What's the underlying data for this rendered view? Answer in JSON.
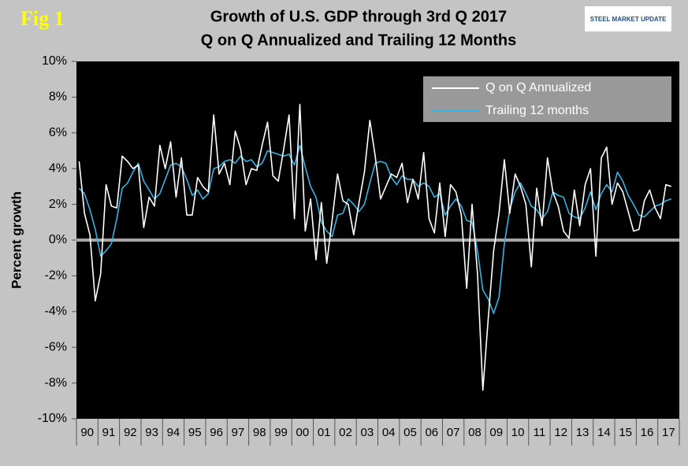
{
  "chart_data": {
    "type": "line",
    "fig_label": "Fig 1",
    "logo": "STEEL MARKET UPDATE",
    "title": "Growth of U.S. GDP through 3rd Q 2017",
    "subtitle": "Q on Q Annualized and Trailing 12 Months",
    "y_label": "Percent growth",
    "categories": [
      "90",
      null,
      null,
      null,
      "91",
      null,
      null,
      null,
      "92",
      null,
      null,
      null,
      "93",
      null,
      null,
      null,
      "94",
      null,
      null,
      null,
      "95",
      null,
      null,
      null,
      "96",
      null,
      null,
      null,
      "97",
      null,
      null,
      null,
      "98",
      null,
      null,
      null,
      "99",
      null,
      null,
      null,
      "00",
      null,
      null,
      null,
      "01",
      null,
      null,
      null,
      "02",
      null,
      null,
      null,
      "03",
      null,
      null,
      null,
      "04",
      null,
      null,
      null,
      "05",
      null,
      null,
      null,
      "06",
      null,
      null,
      null,
      "07",
      null,
      null,
      null,
      "08",
      null,
      null,
      null,
      "09",
      null,
      null,
      null,
      "10",
      null,
      null,
      null,
      "11",
      null,
      null,
      null,
      "12",
      null,
      null,
      null,
      "13",
      null,
      null,
      null,
      "14",
      null,
      null,
      null,
      "15",
      null,
      null,
      null,
      "16",
      null,
      null,
      null,
      "17",
      null,
      null
    ],
    "series": [
      {
        "name": "Q on Q Annualized",
        "color": "#ffffff",
        "values": [
          4.4,
          1.5,
          0.3,
          -3.4,
          -1.9,
          3.1,
          1.9,
          1.8,
          4.7,
          4.4,
          4.0,
          4.2,
          0.7,
          2.4,
          1.9,
          5.3,
          4.0,
          5.5,
          2.4,
          4.6,
          1.4,
          1.4,
          3.5,
          3.0,
          2.7,
          7.0,
          3.7,
          4.3,
          3.1,
          6.1,
          5.1,
          3.1,
          4.0,
          3.9,
          5.3,
          6.6,
          3.6,
          3.3,
          5.1,
          7.0,
          1.2,
          7.6,
          0.5,
          2.3,
          -1.1,
          2.1,
          -1.3,
          1.1,
          3.7,
          2.2,
          2.0,
          0.3,
          2.1,
          3.8,
          6.7,
          4.7,
          2.3,
          3.0,
          3.7,
          3.5,
          4.3,
          2.1,
          3.4,
          2.3,
          4.9,
          1.2,
          0.4,
          3.2,
          0.2,
          3.1,
          2.7,
          1.4,
          -2.7,
          2.0,
          -1.9,
          -8.4,
          -4.4,
          -0.6,
          1.5,
          4.5,
          1.5,
          3.7,
          3.0,
          2.0,
          -1.5,
          2.9,
          0.8,
          4.6,
          2.7,
          1.9,
          0.5,
          0.1,
          2.8,
          0.8,
          3.1,
          4.0,
          -0.9,
          4.6,
          5.2,
          2.0,
          3.2,
          2.7,
          1.6,
          0.5,
          0.6,
          2.2,
          2.8,
          1.8,
          1.2,
          3.1,
          3.0
        ]
      },
      {
        "name": "Trailing 12 months",
        "color": "#33b5e5",
        "values": [
          2.9,
          2.6,
          1.7,
          0.6,
          -0.9,
          -0.6,
          -0.2,
          1.2,
          2.9,
          3.2,
          3.8,
          4.3,
          3.3,
          2.8,
          2.3,
          2.6,
          3.4,
          4.2,
          4.3,
          4.1,
          3.4,
          2.5,
          2.8,
          2.3,
          2.6,
          4.0,
          4.1,
          4.4,
          4.5,
          4.3,
          4.7,
          4.4,
          4.5,
          4.1,
          4.3,
          5.0,
          4.9,
          4.8,
          4.7,
          4.8,
          4.2,
          5.3,
          4.1,
          3.0,
          2.4,
          1.0,
          0.5,
          0.2,
          1.4,
          1.5,
          2.3,
          2.0,
          1.6,
          2.0,
          3.2,
          4.3,
          4.4,
          4.3,
          3.5,
          3.1,
          3.6,
          3.4,
          3.4,
          3.0,
          3.2,
          3.0,
          2.4,
          2.6,
          1.4,
          1.9,
          2.3,
          1.9,
          1.1,
          1.0,
          -0.6,
          -2.8,
          -3.3,
          -4.1,
          -3.2,
          -0.2,
          1.7,
          2.7,
          3.2,
          2.6,
          1.9,
          1.7,
          1.2,
          1.6,
          2.7,
          2.5,
          2.4,
          1.5,
          1.3,
          1.2,
          1.8,
          2.7,
          1.7,
          2.6,
          3.1,
          2.7,
          3.8,
          3.3,
          2.5,
          2.0,
          1.4,
          1.3,
          1.6,
          1.9,
          2.0,
          2.2,
          2.3
        ]
      }
    ],
    "ylim": [
      -10,
      10
    ],
    "yticks": [
      {
        "value": -10,
        "label": "-10%"
      },
      {
        "value": -8,
        "label": "-8%"
      },
      {
        "value": -6,
        "label": "-6%"
      },
      {
        "value": -4,
        "label": "-4%"
      },
      {
        "value": -2,
        "label": "-2%"
      },
      {
        "value": 0,
        "label": "0%"
      },
      {
        "value": 2,
        "label": "2%"
      },
      {
        "value": 4,
        "label": "4%"
      },
      {
        "value": 6,
        "label": "6%"
      },
      {
        "value": 8,
        "label": "8%"
      },
      {
        "value": 10,
        "label": "10%"
      }
    ],
    "zero_line_color": "#a6a6a6",
    "legend": "upper right"
  }
}
